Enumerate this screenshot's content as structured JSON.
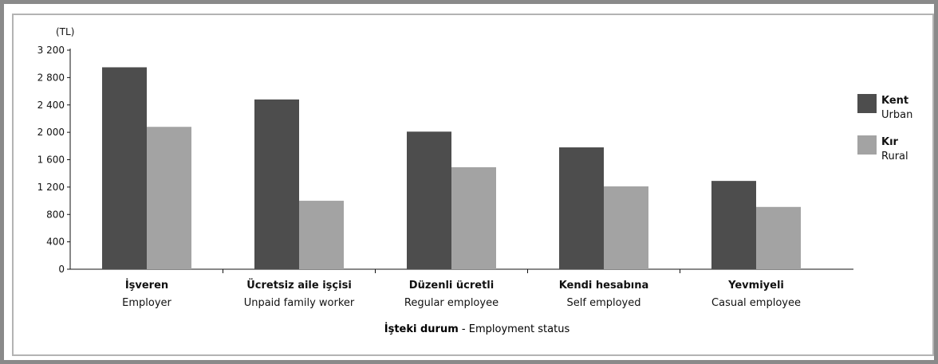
{
  "chart_data": {
    "type": "bar",
    "unit_label": "(TL)",
    "categories": [
      {
        "tr": "İşveren",
        "en": "Employer"
      },
      {
        "tr": "Ücretsiz aile işçisi",
        "en": "Unpaid family worker"
      },
      {
        "tr": "Düzenli ücretli",
        "en": "Regular employee"
      },
      {
        "tr": "Kendi hesabına",
        "en": "Self employed"
      },
      {
        "tr": "Yevmiyeli",
        "en": "Casual employee"
      }
    ],
    "series": [
      {
        "name_tr": "Kent",
        "name_en": "Urban",
        "color": "#4d4d4d",
        "values": [
          2950,
          2480,
          2010,
          1780,
          1290
        ]
      },
      {
        "name_tr": "Kır",
        "name_en": "Rural",
        "color": "#a3a3a3",
        "values": [
          2080,
          1000,
          1490,
          1210,
          910
        ]
      }
    ],
    "yticks": [
      "0",
      "400",
      "800",
      "1 200",
      "1 600",
      "2 000",
      "2 400",
      "2 800",
      "3 200"
    ],
    "ylim": [
      0,
      3200
    ],
    "xlabel_tr": "İşteki durum",
    "xlabel_sep": " - ",
    "xlabel_en": "Employment status",
    "legend_position": "right",
    "grid": false
  }
}
